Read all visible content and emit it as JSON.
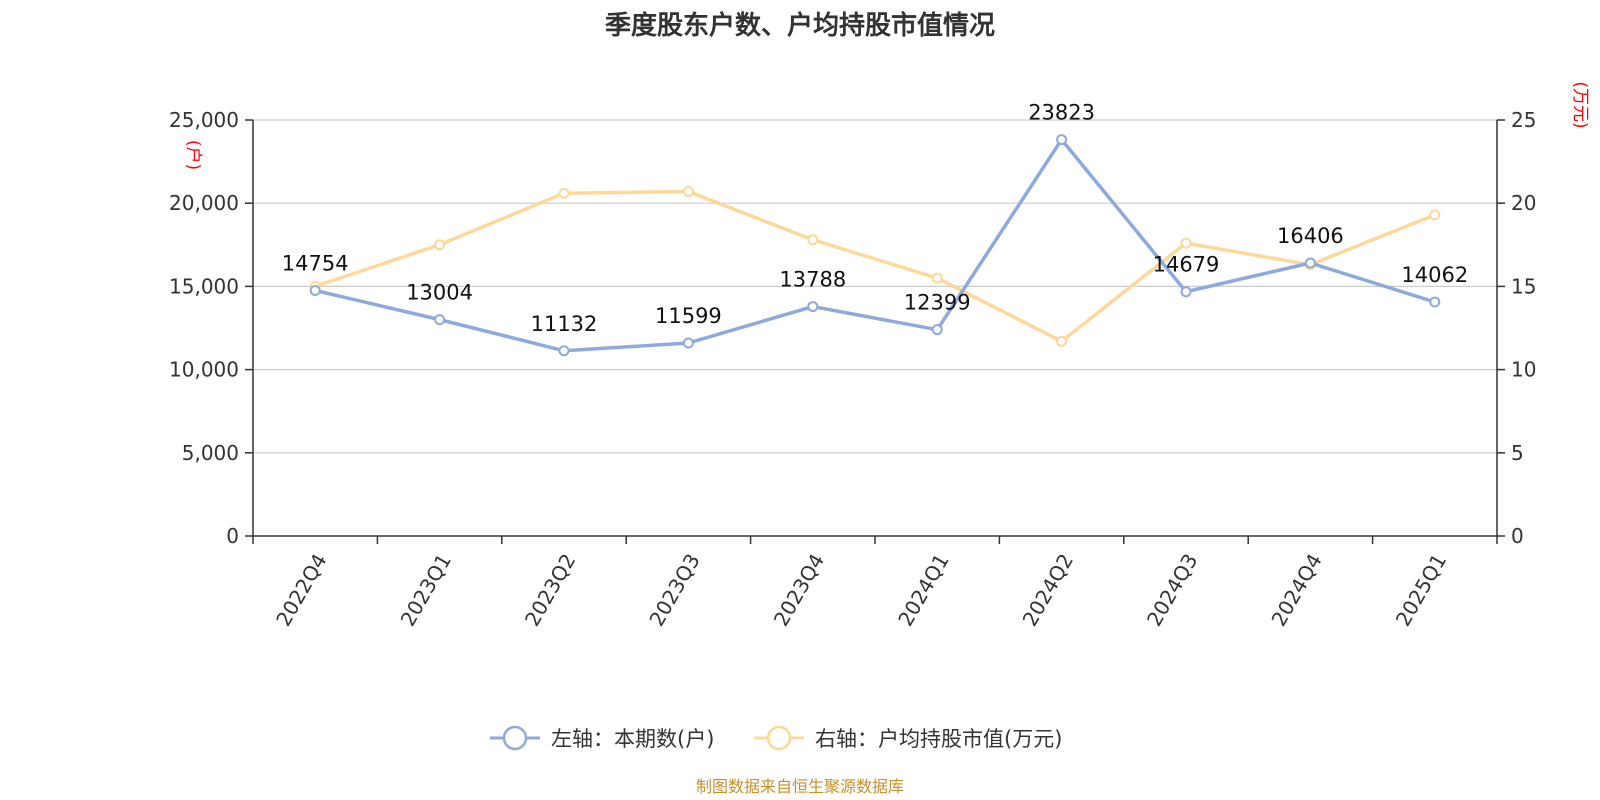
{
  "chart_data": {
    "type": "line",
    "title": "季度股东户数、户均持股市值情况",
    "categories": [
      "2022Q4",
      "2023Q1",
      "2023Q2",
      "2023Q3",
      "2023Q4",
      "2024Q1",
      "2024Q2",
      "2024Q3",
      "2024Q4",
      "2025Q1"
    ],
    "left_axis": {
      "unit_label": "(户)",
      "ylim": [
        0,
        25000
      ],
      "ticks": [
        0,
        5000,
        10000,
        15000,
        20000,
        25000
      ],
      "tick_labels": [
        "0",
        "5,000",
        "10,000",
        "15,000",
        "20,000",
        "25,000"
      ]
    },
    "right_axis": {
      "unit_label": "(万元)",
      "ylim": [
        0,
        25
      ],
      "ticks": [
        0,
        5,
        10,
        15,
        20,
        25
      ],
      "tick_labels": [
        "0",
        "5",
        "10",
        "15",
        "20",
        "25"
      ]
    },
    "series": [
      {
        "name": "左轴：本期数(户)",
        "axis": "left",
        "color": "#8eaadb",
        "values": [
          14754,
          13004,
          11132,
          11599,
          13788,
          12399,
          23823,
          14679,
          16406,
          14062
        ],
        "labels": [
          "14754",
          "13004",
          "11132",
          "11599",
          "13788",
          "12399",
          "23823",
          "14679",
          "16406",
          "14062"
        ]
      },
      {
        "name": "右轴：户均持股市值(万元)",
        "axis": "right",
        "color": "#fcd89a",
        "values": [
          15.0,
          17.5,
          20.6,
          20.7,
          17.8,
          15.5,
          11.7,
          17.6,
          16.3,
          19.3
        ]
      }
    ],
    "grid": true,
    "legend_position": "bottom-center",
    "source_note": "制图数据来自恒生聚源数据库"
  }
}
